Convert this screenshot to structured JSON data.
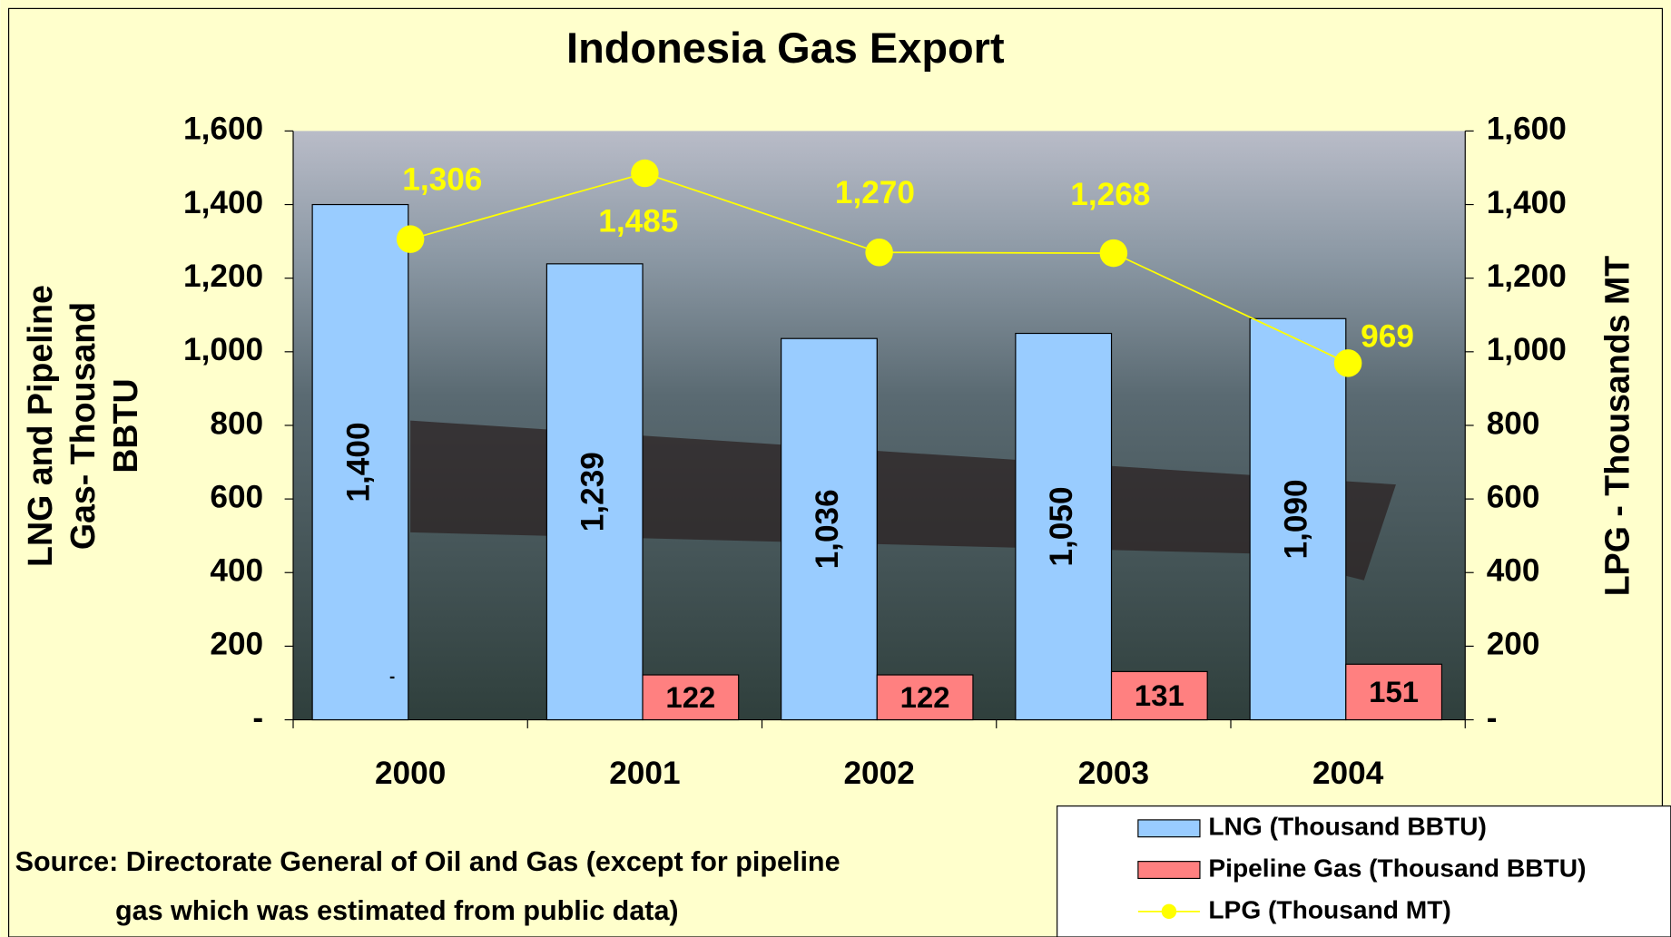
{
  "chart_data": {
    "type": "bar",
    "title": "Indonesia Gas Export",
    "categories": [
      "2000",
      "2001",
      "2002",
      "2003",
      "2004"
    ],
    "series": [
      {
        "name": "LNG (Thousand BBTU)",
        "color": "#99ccff",
        "values": [
          1400,
          1239,
          1036,
          1050,
          1090
        ],
        "value_labels": [
          "1,400",
          "1,239",
          "1,036",
          "1,050",
          "1,090"
        ]
      },
      {
        "name": "Pipeline Gas (Thousand BBTU)",
        "color": "#ff8080",
        "values": [
          0,
          122,
          122,
          131,
          151
        ],
        "value_labels": [
          "-",
          "122",
          "122",
          "131",
          "151"
        ]
      },
      {
        "name": "LPG (Thousand MT)",
        "type": "line",
        "axis": "y2",
        "color": "#ffff00",
        "values": [
          1306,
          1485,
          1270,
          1268,
          969
        ],
        "value_labels": [
          "1,306",
          "1,485",
          "1,270",
          "1,268",
          "969"
        ]
      }
    ],
    "ylabel": [
      "LNG and Pipeline",
      "Gas- Thousand",
      "BBTU"
    ],
    "y2label": "LPG - Thousands MT",
    "ylim": [
      0,
      1600
    ],
    "yticks": [
      {
        "value": 0,
        "label": "-"
      },
      200,
      400,
      600,
      800,
      {
        "value": 1000,
        "label": "1,000"
      },
      {
        "value": 1200,
        "label": "1,200"
      },
      {
        "value": 1400,
        "label": "1,400"
      },
      {
        "value": 1600,
        "label": "1,600"
      }
    ],
    "y2lim": [
      0,
      1600
    ],
    "y2ticks": [
      {
        "value": 0,
        "label": "-"
      },
      200,
      400,
      600,
      800,
      {
        "value": 1000,
        "label": "1,000"
      },
      {
        "value": 1200,
        "label": "1,200"
      },
      {
        "value": 1400,
        "label": "1,400"
      },
      {
        "value": 1600,
        "label": "1,600"
      }
    ],
    "source": [
      "Source: Directorate General of Oil and Gas (except for pipeline",
      "gas which was estimated from public data)"
    ],
    "legend": "bottom-right"
  }
}
